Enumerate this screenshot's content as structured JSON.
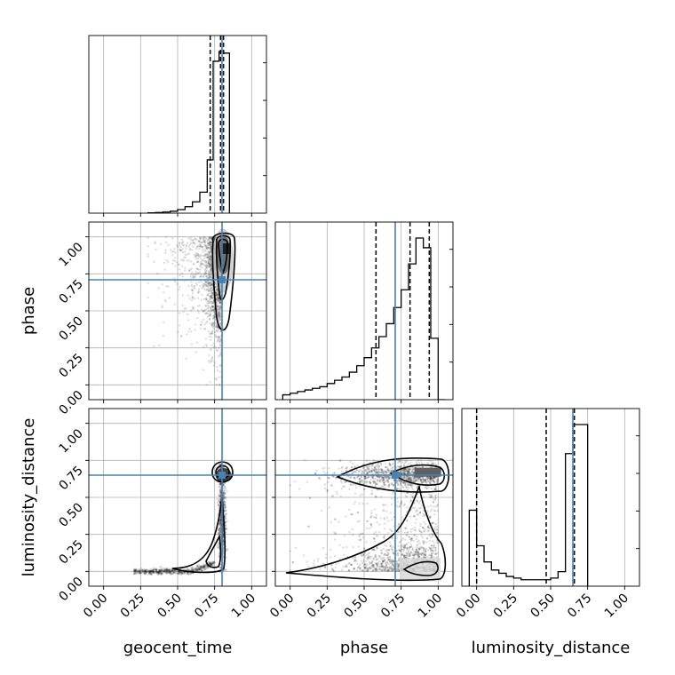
{
  "chart_data": {
    "type": "corner",
    "parameters": [
      "geocent_time",
      "phase",
      "luminosity_distance"
    ],
    "axis_labels": {
      "x": [
        "geocent_time",
        "phase",
        "luminosity_distance"
      ],
      "y": [
        "phase",
        "luminosity_distance"
      ]
    },
    "ranges": [
      [
        -0.1,
        1.1
      ],
      [
        -0.1,
        1.1
      ],
      [
        -0.1,
        1.1
      ]
    ],
    "tick_values": [
      0.0,
      0.25,
      0.5,
      0.75,
      1.0
    ],
    "tick_labels": [
      "0.00",
      "0.25",
      "0.50",
      "0.75",
      "1.00"
    ],
    "grid": true,
    "truths": [
      0.8,
      0.71,
      0.65
    ],
    "truth_color": "#4682b4",
    "quantile_lines": [
      [
        0.72,
        0.79,
        0.81
      ],
      [
        0.58,
        0.81,
        0.94
      ],
      [
        0.0,
        0.47,
        0.66
      ]
    ],
    "histograms": [
      {
        "parameter": "geocent_time",
        "bin_edges": [
          0.3,
          0.35,
          0.4,
          0.45,
          0.5,
          0.55,
          0.6,
          0.65,
          0.7,
          0.74,
          0.78,
          0.81,
          0.85
        ],
        "counts": [
          0.2,
          0.4,
          0.7,
          1.2,
          2.2,
          4.0,
          7.0,
          13.0,
          33.0,
          94.0,
          100.0,
          99.0
        ]
      },
      {
        "parameter": "phase",
        "bin_edges": [
          -0.05,
          0.0,
          0.05,
          0.1,
          0.15,
          0.2,
          0.25,
          0.3,
          0.35,
          0.4,
          0.45,
          0.5,
          0.55,
          0.6,
          0.65,
          0.7,
          0.75,
          0.8,
          0.85,
          0.9,
          0.95,
          1.0,
          1.05
        ],
        "counts": [
          3,
          4,
          5,
          6,
          7,
          8,
          10,
          12,
          14,
          17,
          21,
          26,
          32,
          39,
          47,
          57,
          68,
          84,
          100,
          94,
          38,
          0
        ]
      },
      {
        "parameter": "luminosity_distance",
        "bin_edges": [
          -0.05,
          0.0,
          0.05,
          0.1,
          0.15,
          0.2,
          0.25,
          0.3,
          0.35,
          0.4,
          0.45,
          0.5,
          0.55,
          0.6,
          0.65,
          0.7,
          0.75
        ],
        "counts": [
          47,
          25,
          15,
          10,
          8,
          6,
          5,
          4,
          4,
          4,
          4,
          5,
          9,
          82,
          100,
          100
        ]
      }
    ],
    "pairs": [
      {
        "x": "geocent_time",
        "y": "phase"
      },
      {
        "x": "geocent_time",
        "y": "luminosity_distance"
      },
      {
        "x": "phase",
        "y": "luminosity_distance"
      }
    ]
  }
}
